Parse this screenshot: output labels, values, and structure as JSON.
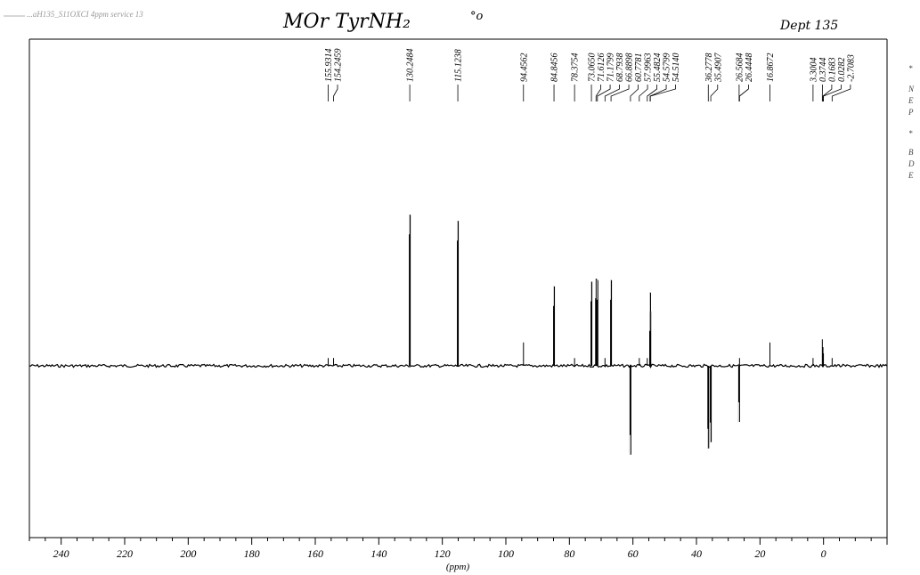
{
  "header": {
    "file_text": "...aH135_S11OXCI 4ppm service 13",
    "handwritten_title": "MOr TyrNH₂",
    "handwritten_note": "°o",
    "handwritten_right": "Dept 135"
  },
  "side_text": [
    "*",
    "N",
    "E",
    "P",
    "*",
    "B",
    "D",
    "E"
  ],
  "chart_data": {
    "type": "line",
    "title": "",
    "xlabel": "(ppm)",
    "ylabel": "",
    "xlim": [
      250,
      -20
    ],
    "x_reversed": true,
    "ylim": [
      -1.1,
      1.1
    ],
    "grid": false,
    "x_ticks": [
      240,
      220,
      200,
      180,
      160,
      140,
      120,
      100,
      80,
      60,
      40,
      20,
      0
    ],
    "x_tick_labels": [
      "240",
      "220",
      "200",
      "180",
      "160",
      "140",
      "120",
      "100",
      "80",
      "60",
      "40",
      "20",
      "0"
    ],
    "series": [
      {
        "peaks": [
          {
            "ppm": 155.9314,
            "intensity": 0.05,
            "label": "155.9314"
          },
          {
            "ppm": 154.2459,
            "intensity": 0.05,
            "label": "154.2459"
          },
          {
            "ppm": 130.2484,
            "intensity": 0.97,
            "label": "130.2484"
          },
          {
            "ppm": 115.1238,
            "intensity": 0.93,
            "label": "115.1238"
          },
          {
            "ppm": 94.4562,
            "intensity": 0.15,
            "label": "94.4562"
          },
          {
            "ppm": 84.8456,
            "intensity": 0.51,
            "label": "84.8456"
          },
          {
            "ppm": 78.3754,
            "intensity": 0.05,
            "label": "78.3754"
          },
          {
            "ppm": 73.065,
            "intensity": 0.54,
            "label": "73.0650"
          },
          {
            "ppm": 71.6126,
            "intensity": 0.56,
            "label": "71.6126"
          },
          {
            "ppm": 71.1799,
            "intensity": 0.55,
            "label": "71.1799"
          },
          {
            "ppm": 68.7938,
            "intensity": 0.05,
            "label": "68.7938"
          },
          {
            "ppm": 66.8898,
            "intensity": 0.55,
            "label": "66.8898"
          },
          {
            "ppm": 60.7781,
            "intensity": -0.57,
            "label": "60.7781"
          },
          {
            "ppm": 57.9963,
            "intensity": 0.05,
            "label": "57.9963"
          },
          {
            "ppm": 55.4824,
            "intensity": 0.05,
            "label": "55.4824"
          },
          {
            "ppm": 54.5799,
            "intensity": 0.47,
            "label": "54.5799"
          },
          {
            "ppm": 54.514,
            "intensity": 0.35,
            "label": "54.5140"
          },
          {
            "ppm": 36.2778,
            "intensity": -0.53,
            "label": "36.2778"
          },
          {
            "ppm": 35.4907,
            "intensity": -0.49,
            "label": "35.4907"
          },
          {
            "ppm": 26.5684,
            "intensity": -0.36,
            "label": "26.5684"
          },
          {
            "ppm": 26.4448,
            "intensity": 0.05,
            "label": "26.4448"
          },
          {
            "ppm": 16.8672,
            "intensity": 0.15,
            "label": "16.8672"
          },
          {
            "ppm": 3.3004,
            "intensity": 0.05,
            "label": "3.3004"
          },
          {
            "ppm": 0.3744,
            "intensity": 0.17,
            "label": "0.3744"
          },
          {
            "ppm": 0.1683,
            "intensity": 0.12,
            "label": "0.1683"
          },
          {
            "ppm": 0.0282,
            "intensity": 0.08,
            "label": "0.0282"
          },
          {
            "ppm": -2.7083,
            "intensity": 0.05,
            "label": "-2.7083"
          }
        ]
      }
    ]
  }
}
